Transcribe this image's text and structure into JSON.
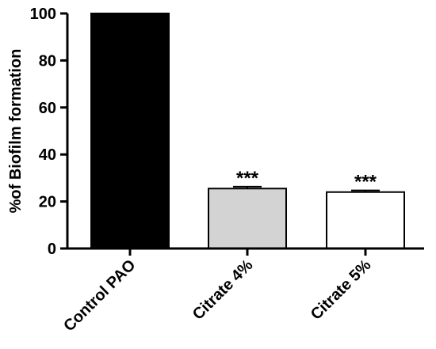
{
  "chart_data": {
    "type": "bar",
    "title": "",
    "xlabel": "",
    "ylabel": "%of Biofilm formation",
    "ylim": [
      0,
      100
    ],
    "yticks": [
      0,
      20,
      40,
      60,
      80,
      100
    ],
    "categories": [
      "Control PAO",
      "Citrate 4%",
      "Citrate 5%"
    ],
    "values": [
      100,
      25.5,
      24
    ],
    "errors": [
      0,
      0.8,
      0.7
    ],
    "annotations": [
      "",
      "***",
      "***"
    ],
    "bar_colors": [
      "#000000",
      "#d3d3d3",
      "#ffffff"
    ],
    "grid": false,
    "legend": "none"
  }
}
